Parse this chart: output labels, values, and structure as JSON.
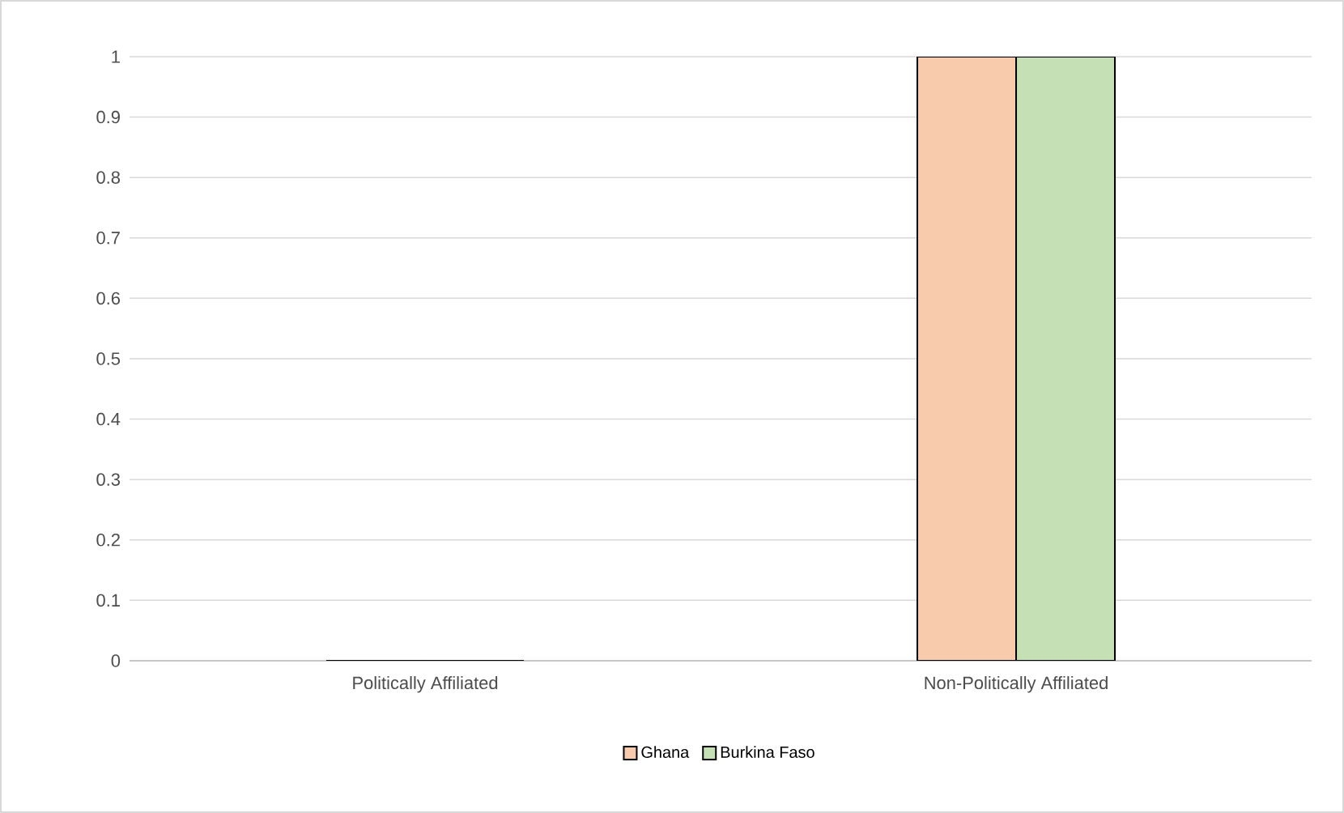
{
  "chart_data": {
    "type": "bar",
    "categories": [
      "Politically Affiliated",
      "Non-Politically Affiliated"
    ],
    "series": [
      {
        "name": "Ghana",
        "color": "#f8cbad",
        "values": [
          0,
          1
        ]
      },
      {
        "name": "Burkina Faso",
        "color": "#c5e0b4",
        "values": [
          0,
          1
        ]
      }
    ],
    "ylim": [
      0,
      1
    ],
    "yticks": [
      0,
      0.1,
      0.2,
      0.3,
      0.4,
      0.5,
      0.6,
      0.7,
      0.8,
      0.9,
      1
    ],
    "grid": "y",
    "legend": "bottom"
  }
}
